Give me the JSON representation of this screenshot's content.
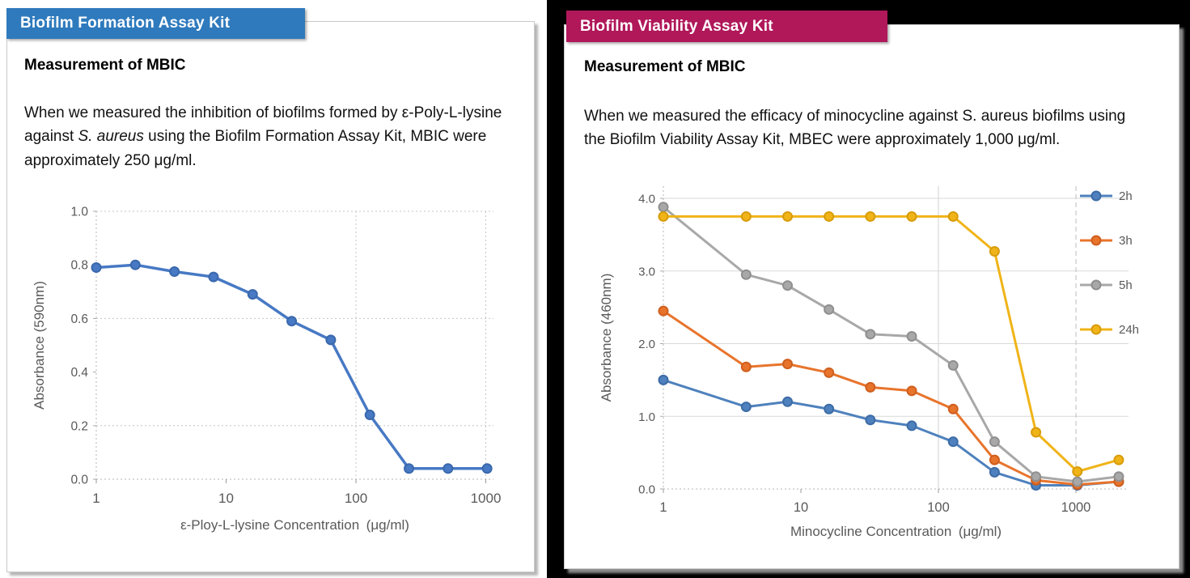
{
  "left_panel": {
    "header_label": "Biofilm Formation Assay Kit",
    "header_color": "#2e7abd",
    "section_title": "Measurement of MBIC",
    "body": {
      "before": "When we measured the inhibition of biofilms formed by ε-Poly-L-lysine against ",
      "italic": "S. aureus",
      "after": " using the Biofilm Formation Assay Kit, MBIC were approximately 250 μg/ml."
    }
  },
  "right_panel": {
    "header_label": "Biofilm Viability Assay Kit",
    "header_color": "#b0185a",
    "section_title": "Measurement of MBIC",
    "body": "When we measured the efficacy of minocycline against S. aureus biofilms using the Biofilm Viability Assay Kit, MBEC were approximately 1,000 μg/ml."
  },
  "chart_data": [
    {
      "id": "formation",
      "type": "line",
      "xlabel": "ε-Ploy-L-lysine Concentration (μg/ml)",
      "ylabel": "Absorbance (590nm)",
      "x_scale": "log",
      "x_ticks": [
        1,
        10,
        100,
        1000
      ],
      "y_ticks": [
        0.0,
        0.2,
        0.4,
        0.6,
        0.8,
        1.0
      ],
      "ylim": [
        0,
        1.0
      ],
      "xlim": [
        1,
        1100
      ],
      "grid": "dotted",
      "h_grid": [
        0.2,
        0.6,
        1.0
      ],
      "v_grid_dotted": [
        100,
        1000
      ],
      "legend": false,
      "x": [
        1,
        2,
        4,
        8,
        16,
        32,
        64,
        128,
        256,
        512,
        1024
      ],
      "series": [
        {
          "name": "Absorbance",
          "color": "#4779c4",
          "marker": "#3a68ac",
          "values": [
            0.79,
            0.8,
            0.775,
            0.755,
            0.69,
            0.59,
            0.52,
            0.24,
            0.04,
            0.04,
            0.04
          ]
        }
      ]
    },
    {
      "id": "viability",
      "type": "line",
      "xlabel": "Minocycline Concentration (μg/ml)",
      "ylabel": "Absorbance (460nm)",
      "x_scale": "log",
      "x_ticks": [
        1,
        10,
        100,
        1000
      ],
      "y_ticks": [
        0.0,
        1.0,
        2.0,
        3.0,
        4.0
      ],
      "ylim": [
        0,
        4.35
      ],
      "xlim": [
        1,
        2100
      ],
      "grid": "solid",
      "h_grid": [
        1.0,
        2.0,
        3.0,
        4.0
      ],
      "v_grid_solid": [
        100
      ],
      "v_grid_dashed": [
        1000
      ],
      "legend": true,
      "legend_position": "top-right",
      "x": [
        1,
        4,
        8,
        16,
        32,
        64,
        128,
        256,
        512,
        1024,
        2048
      ],
      "series": [
        {
          "name": "2h",
          "color": "#4e81bd",
          "marker": "#3d6ca6",
          "values": [
            1.5,
            1.13,
            1.2,
            1.1,
            0.95,
            0.87,
            0.65,
            0.23,
            0.05,
            0.05,
            0.1
          ]
        },
        {
          "name": "3h",
          "color": "#e8742c",
          "marker": "#cf5f1e",
          "values": [
            2.45,
            1.68,
            1.72,
            1.6,
            1.4,
            1.35,
            1.1,
            0.4,
            0.12,
            0.06,
            0.1
          ]
        },
        {
          "name": "5h",
          "color": "#a8a8a8",
          "marker": "#8f8f8f",
          "values": [
            3.88,
            2.95,
            2.8,
            2.47,
            2.13,
            2.1,
            1.7,
            0.65,
            0.17,
            0.1,
            0.17
          ]
        },
        {
          "name": "24h",
          "color": "#f0b418",
          "marker": "#d89c0a",
          "values": [
            3.75,
            3.75,
            3.75,
            3.75,
            3.75,
            3.75,
            3.75,
            3.27,
            0.78,
            0.24,
            0.4
          ]
        }
      ]
    }
  ]
}
